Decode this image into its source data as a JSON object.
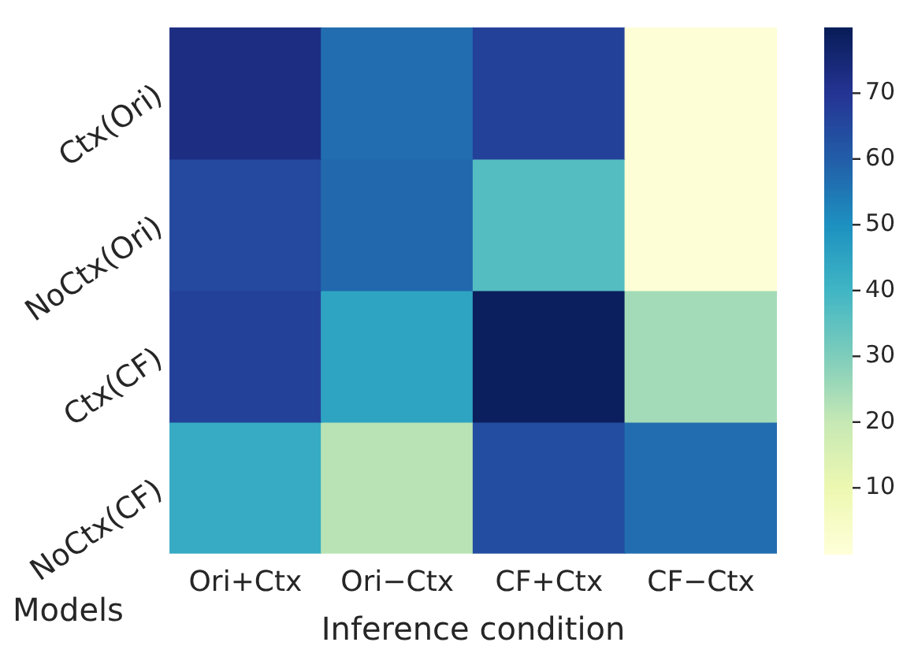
{
  "chart_data": {
    "type": "heatmap",
    "xlabel": "Inference condition",
    "ylabel": "Models",
    "categories": [
      "Ori+Ctx",
      "Ori−Ctx",
      "CF+Ctx",
      "CF−Ctx"
    ],
    "y_categories": [
      "Ctx(Ori)",
      "NoCtx(Ori)",
      "Ctx(CF)",
      "NoCtx(CF)"
    ],
    "cells": [
      [
        73,
        57,
        67,
        1
      ],
      [
        65,
        58,
        37,
        1
      ],
      [
        67,
        45,
        79,
        25
      ],
      [
        43,
        22,
        64,
        57
      ]
    ],
    "clim": [
      0,
      80
    ],
    "cticks": [
      10,
      20,
      30,
      40,
      50,
      60,
      70
    ]
  }
}
